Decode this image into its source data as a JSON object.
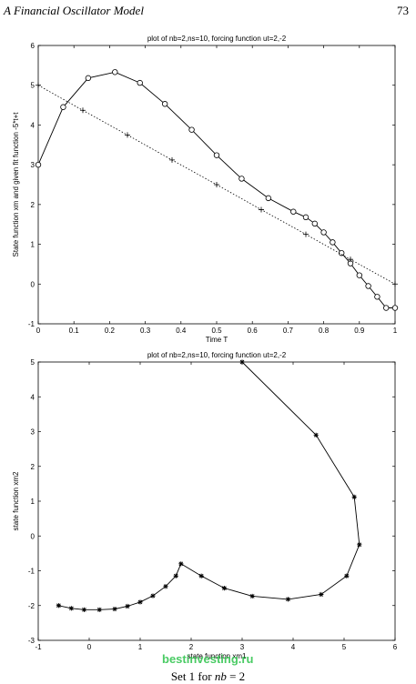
{
  "page": {
    "running_head": "A  Financial Oscillator Model",
    "page_number": "73",
    "caption_prefix": "Set 1 for ",
    "caption_var": "nb",
    "caption_suffix": " = 2",
    "watermark": "bestinvesting.ru"
  },
  "chart_data": [
    {
      "type": "line",
      "title": "plot of nb=2,ns=10, forcing function ut=2,-2",
      "xlabel": "Time T",
      "ylabel": "State function xm and given fit function -5*t+t",
      "xlim": [
        0,
        1
      ],
      "ylim": [
        -1,
        6
      ],
      "xticks": [
        "0",
        "0.1",
        "0.2",
        "0.3",
        "0.4",
        "0.5",
        "0.6",
        "0.7",
        "0.8",
        "0.9",
        "1"
      ],
      "yticks": [
        "-1",
        "0",
        "1",
        "2",
        "3",
        "4",
        "5",
        "6"
      ],
      "grid": false,
      "series": [
        {
          "style": "solid-circle",
          "x": [
            0,
            0.07,
            0.14,
            0.215,
            0.285,
            0.355,
            0.43,
            0.5,
            0.57,
            0.645,
            0.715,
            0.75,
            0.775,
            0.8,
            0.825,
            0.85,
            0.875,
            0.9,
            0.925,
            0.95,
            0.975,
            1.0
          ],
          "y": [
            3.0,
            4.45,
            5.18,
            5.33,
            5.06,
            4.53,
            3.88,
            3.24,
            2.65,
            2.16,
            1.82,
            1.68,
            1.52,
            1.3,
            1.05,
            0.78,
            0.52,
            0.22,
            -0.05,
            -0.32,
            -0.6,
            -0.6
          ]
        },
        {
          "style": "dotted-plus",
          "x": [
            0,
            0.125,
            0.25,
            0.375,
            0.5,
            0.625,
            0.75,
            0.875,
            1.0
          ],
          "y": [
            5.0,
            4.37,
            3.75,
            3.12,
            2.5,
            1.87,
            1.25,
            0.62,
            0.0
          ]
        }
      ]
    },
    {
      "type": "line",
      "title": "plot of nb=2,ns=10, forcing function ut=2,-2",
      "xlabel": "state function xm1",
      "ylabel": "state function xm2",
      "xlim": [
        -1,
        6
      ],
      "ylim": [
        -3,
        5
      ],
      "xticks": [
        "-1",
        "0",
        "1",
        "2",
        "3",
        "4",
        "5",
        "6"
      ],
      "yticks": [
        "-3",
        "-2",
        "-1",
        "0",
        "1",
        "2",
        "3",
        "4",
        "5"
      ],
      "grid": false,
      "series": [
        {
          "style": "solid-star",
          "x": [
            -0.6,
            -0.35,
            -0.1,
            0.2,
            0.5,
            0.75,
            1.0,
            1.25,
            1.5,
            1.7,
            1.8,
            2.2,
            2.65,
            3.2,
            3.9,
            4.55,
            5.05,
            5.3,
            5.2,
            4.45,
            3.0
          ],
          "y": [
            -2.0,
            -2.08,
            -2.12,
            -2.12,
            -2.1,
            -2.02,
            -1.9,
            -1.72,
            -1.45,
            -1.15,
            -0.8,
            -1.15,
            -1.5,
            -1.73,
            -1.82,
            -1.68,
            -1.15,
            -0.25,
            1.12,
            2.9,
            5.0
          ]
        }
      ]
    }
  ]
}
